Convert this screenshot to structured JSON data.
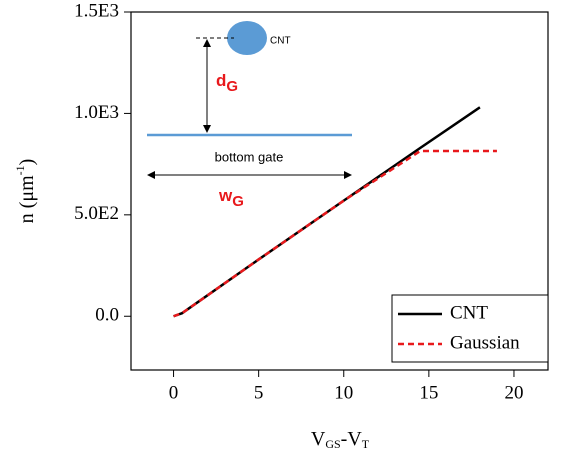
{
  "chart_data": {
    "type": "line",
    "xlabel": [
      "V",
      "GS",
      "-V",
      "T"
    ],
    "ylabel": [
      "n (μm",
      "-1",
      ")"
    ],
    "x": [
      0,
      0.5,
      5,
      10,
      14.5,
      18,
      19
    ],
    "series": [
      {
        "name": "CNT",
        "color": "#000000",
        "dash": false,
        "values": [
          0,
          15,
          280,
          570,
          830,
          1030,
          null
        ]
      },
      {
        "name": "Gaussian",
        "color": "#e8191c",
        "dash": true,
        "values": [
          0,
          15,
          280,
          570,
          815,
          815,
          815
        ]
      }
    ],
    "xlim": [
      -2.5,
      22
    ],
    "ylim": [
      -265,
      1500
    ],
    "xticks": [
      0,
      5,
      10,
      15,
      20
    ],
    "yticks": [
      {
        "value": 0,
        "label": "0.0"
      },
      {
        "value": 500,
        "label": "5.0E2"
      },
      {
        "value": 1000,
        "label": "1.0E3"
      },
      {
        "value": 1500,
        "label": "1.5E3"
      }
    ],
    "legend": "lower right",
    "annotations": {
      "cnt": "CNT",
      "d_g": [
        "d",
        "G"
      ],
      "bottom_gate": "bottom gate",
      "w_g": [
        "w",
        "G"
      ]
    }
  }
}
